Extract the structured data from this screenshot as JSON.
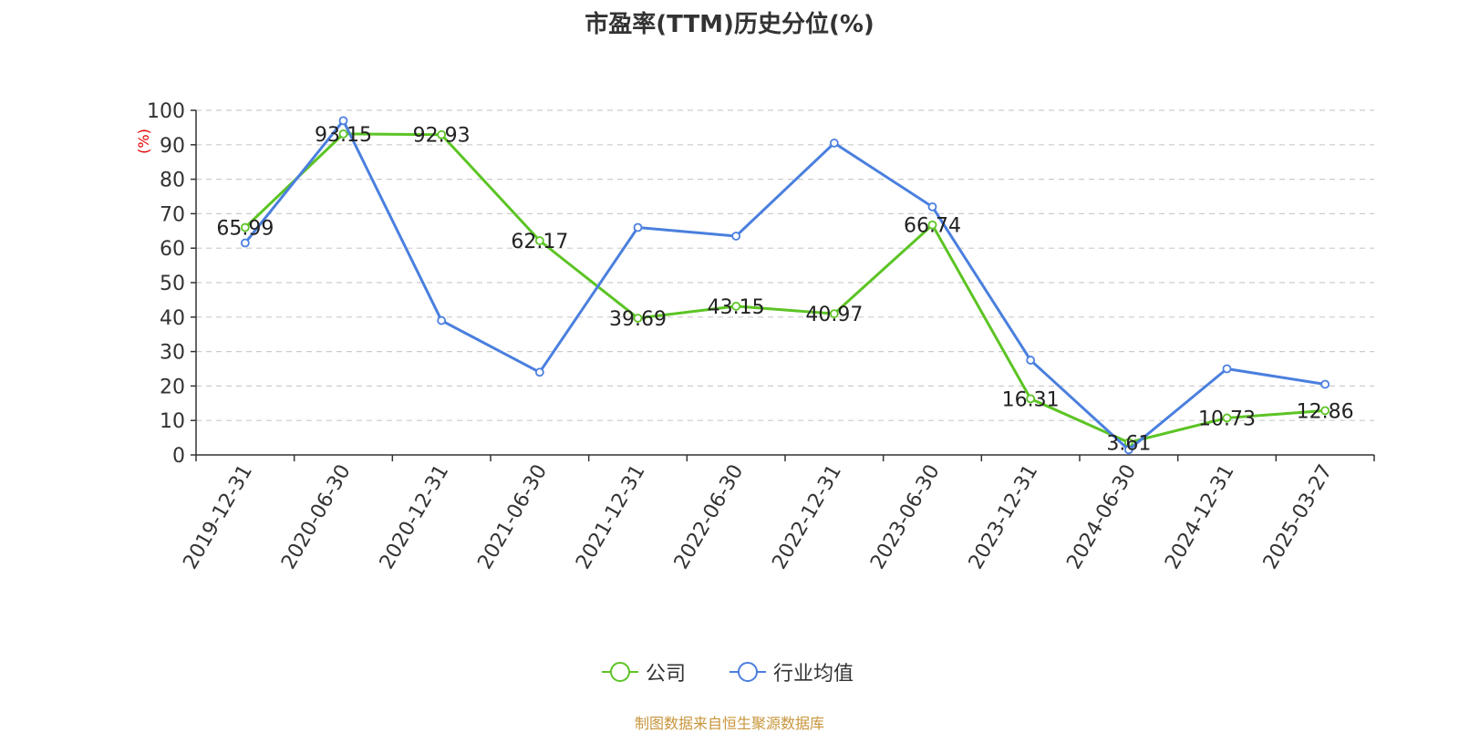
{
  "chart_data": {
    "type": "line",
    "title": "市盈率(TTM)历史分位(%)",
    "ylabel": "(%)",
    "ylim": [
      0,
      100
    ],
    "yticks": [
      "0",
      "10",
      "20",
      "30",
      "40",
      "50",
      "60",
      "70",
      "80",
      "90",
      "100"
    ],
    "categories": [
      "2019-12-31",
      "2020-06-30",
      "2020-12-31",
      "2021-06-30",
      "2021-12-31",
      "2022-06-30",
      "2022-12-31",
      "2023-06-30",
      "2023-12-31",
      "2024-06-30",
      "2024-12-31",
      "2025-03-27"
    ],
    "grid": true,
    "legend_position": "bottom",
    "series": [
      {
        "name": "公司",
        "color": "#5cc424",
        "values": [
          65.99,
          93.15,
          92.93,
          62.17,
          39.69,
          43.15,
          40.97,
          66.74,
          16.31,
          3.61,
          10.73,
          12.86
        ],
        "labels": [
          "65.99",
          "93.15",
          "92.93",
          "62.17",
          "39.69",
          "43.15",
          "40.97",
          "66.74",
          "16.31",
          "3.61",
          "10.73",
          "12.86"
        ]
      },
      {
        "name": "行业均值",
        "color": "#4a7fde",
        "values": [
          61.5,
          97,
          39,
          24,
          66,
          63.5,
          90.5,
          72,
          27.5,
          1.5,
          25,
          20.5
        ]
      }
    ]
  },
  "footer": {
    "source": "制图数据来自恒生聚源数据库"
  }
}
